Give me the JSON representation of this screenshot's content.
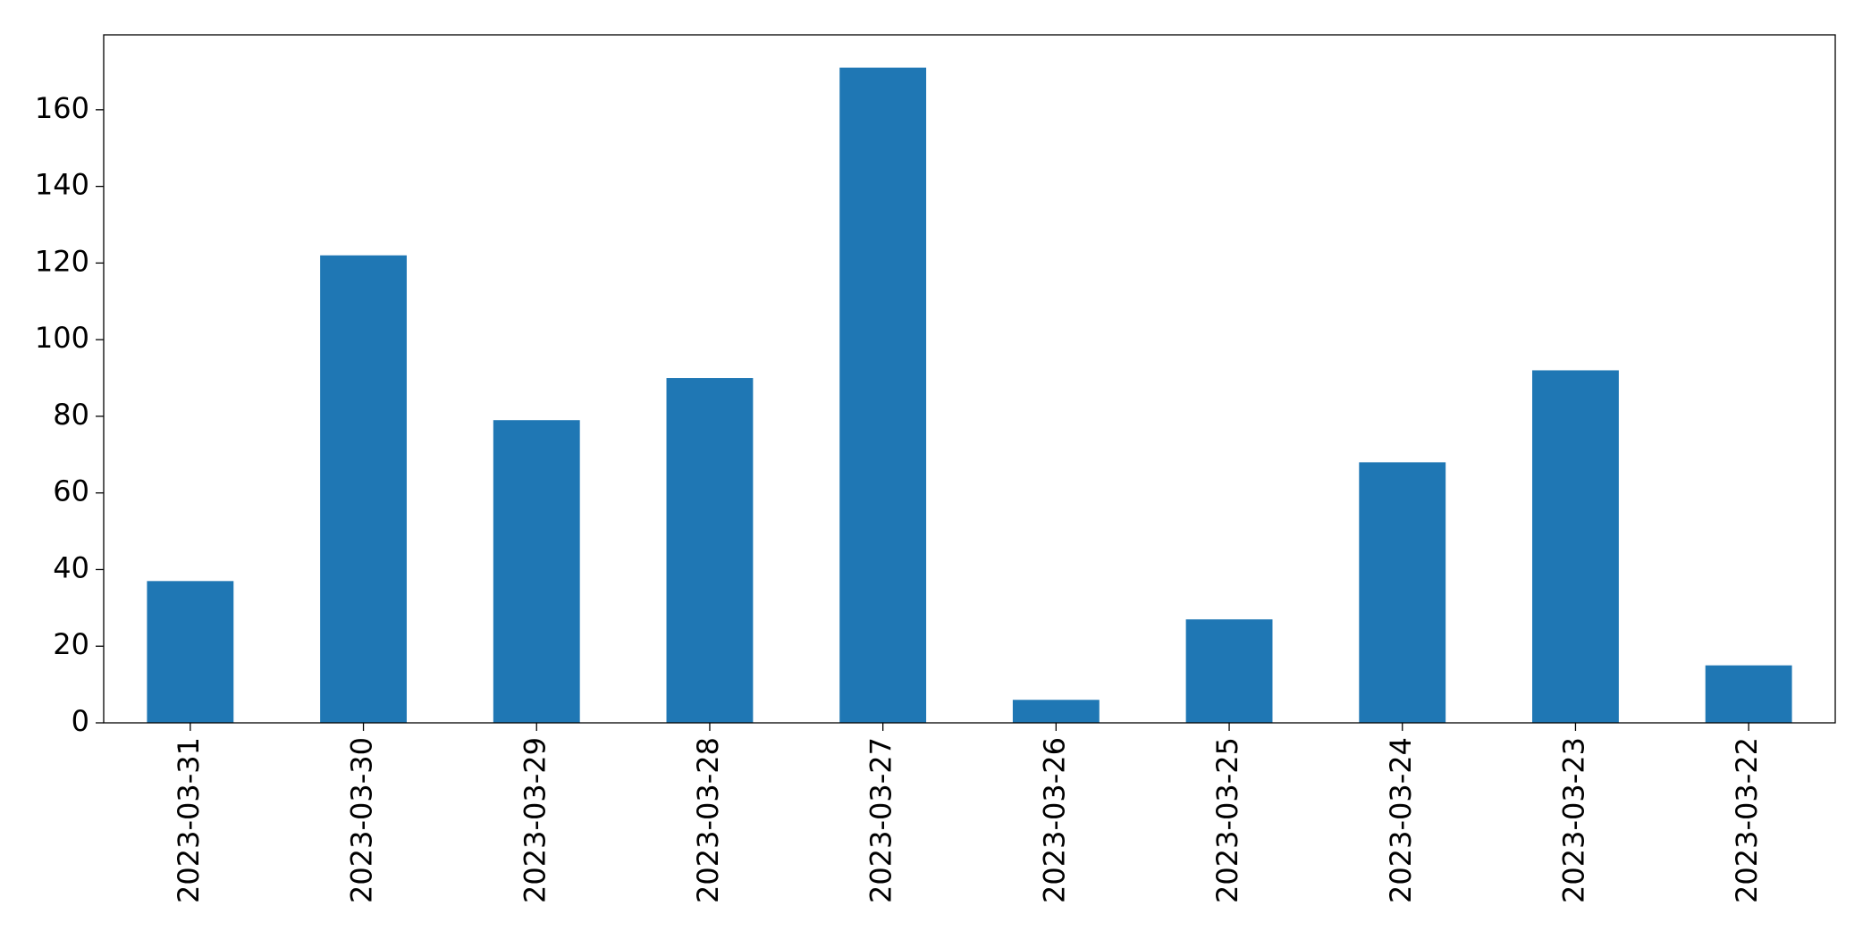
{
  "chart_data": {
    "type": "bar",
    "categories": [
      "2023-03-31",
      "2023-03-30",
      "2023-03-29",
      "2023-03-28",
      "2023-03-27",
      "2023-03-26",
      "2023-03-25",
      "2023-03-24",
      "2023-03-23",
      "2023-03-22"
    ],
    "values": [
      37,
      122,
      79,
      90,
      171,
      6,
      27,
      68,
      92,
      15
    ],
    "color": "#1f77b4",
    "ylim": [
      0,
      179.55
    ],
    "yticks": [
      0,
      20,
      40,
      60,
      80,
      100,
      120,
      140,
      160
    ],
    "grid": false
  }
}
